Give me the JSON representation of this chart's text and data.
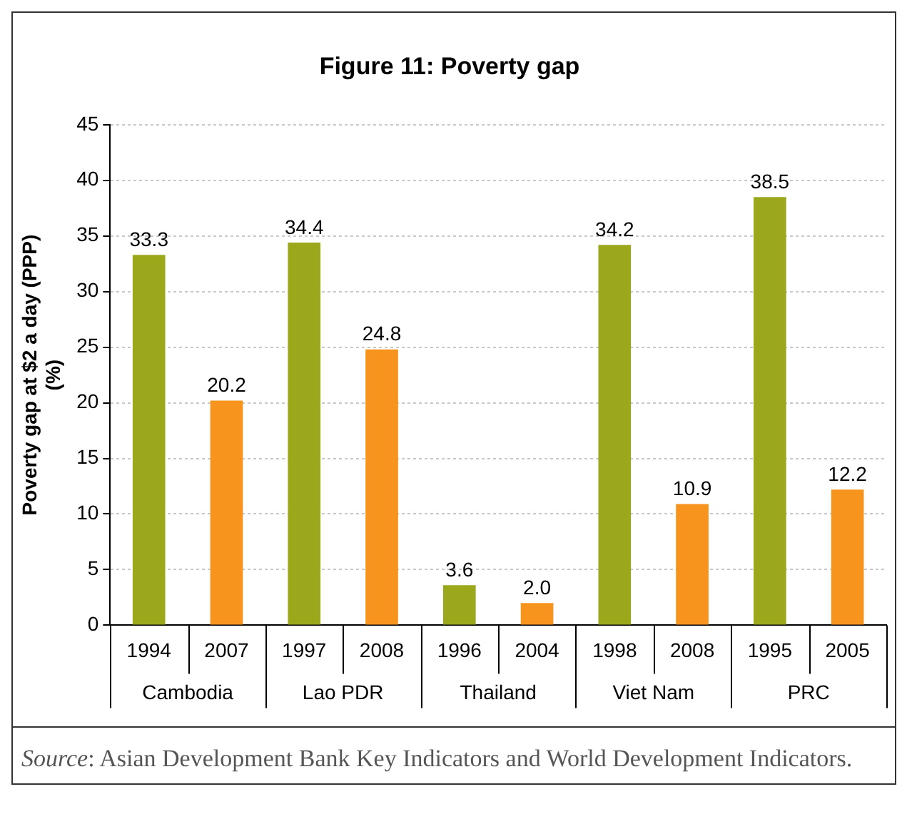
{
  "chart_data": {
    "type": "bar",
    "title": "Figure 11: Poverty gap",
    "ylabel": "Poverty gap at $2 a day (PPP)\n(%)",
    "categories": [
      "1994",
      "2007",
      "1997",
      "2008",
      "1996",
      "2004",
      "1998",
      "2008",
      "1995",
      "2005"
    ],
    "series": [
      {
        "values": [
          33.3,
          20.2,
          34.4,
          24.8,
          3.6,
          2.0,
          34.2,
          10.9,
          38.5,
          12.2
        ],
        "colors": [
          "#9ca81c",
          "#f7941d",
          "#9ca81c",
          "#f7941d",
          "#9ca81c",
          "#f7941d",
          "#9ca81c",
          "#f7941d",
          "#9ca81c",
          "#f7941d"
        ],
        "value_labels": [
          "33.3",
          "20.2",
          "34.4",
          "24.8",
          "3.6",
          "2.0",
          "34.2",
          "10.9",
          "38.5",
          "12.2"
        ]
      }
    ],
    "ylim": [
      0,
      45
    ],
    "yticks": [
      0,
      5,
      10,
      15,
      20,
      25,
      30,
      35,
      40,
      45
    ],
    "grid": "y",
    "line_style": "dotted",
    "legend": false,
    "annotations": [
      "Cambodia",
      "Lao PDR",
      "Thailand",
      "Viet Nam",
      "PRC",
      "Source: Asian Development Bank Key Indicators and World Development Indicators."
    ]
  }
}
